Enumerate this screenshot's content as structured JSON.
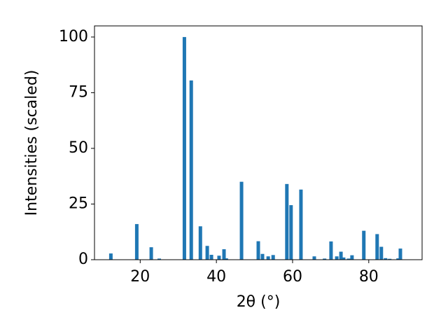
{
  "chart_data": {
    "type": "bar",
    "x_label": "2θ (°)",
    "y_label": "Intensities (scaled)",
    "color": "#1f77b4",
    "x": [
      12.3,
      19.1,
      22.9,
      25.0,
      31.6,
      33.4,
      35.8,
      37.6,
      38.7,
      40.7,
      42.0,
      42.6,
      46.6,
      51.0,
      52.1,
      53.6,
      54.9,
      58.5,
      59.6,
      62.2,
      65.7,
      68.4,
      70.1,
      71.6,
      72.7,
      73.4,
      74.7,
      75.6,
      78.7,
      82.2,
      83.3,
      84.4,
      85.5,
      87.7,
      88.3
    ],
    "values": [
      2.8,
      16,
      5.6,
      0.5,
      100,
      80.5,
      15,
      6.2,
      2.2,
      1.8,
      4.7,
      0.6,
      35,
      8.3,
      2.6,
      1.5,
      2.1,
      34,
      24.5,
      31.5,
      1.5,
      0.5,
      8.2,
      1.5,
      3.6,
      1.0,
      0.5,
      2.0,
      13,
      11.5,
      5.8,
      0.7,
      0.4,
      0.6,
      5
    ],
    "xlim": [
      8,
      94
    ],
    "ylim": [
      0,
      105
    ],
    "xticks": [
      20,
      40,
      60,
      80
    ],
    "yticks": [
      0,
      25,
      50,
      75,
      100
    ],
    "grid": false
  }
}
